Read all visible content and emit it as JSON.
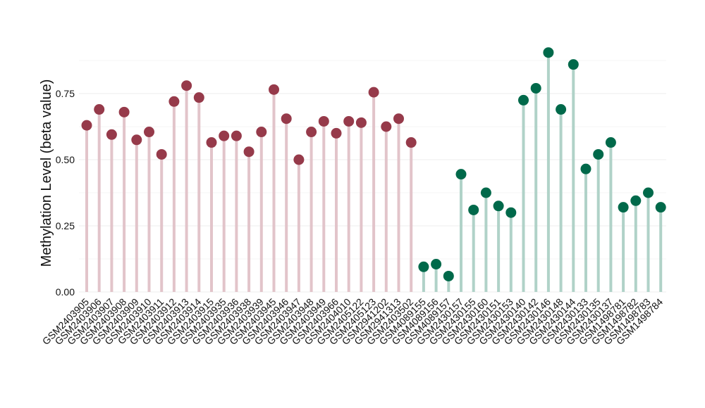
{
  "chart_data": {
    "type": "lollipop",
    "title": "",
    "xlabel": "",
    "ylabel": "Methylation Level (beta value)",
    "ylim": [
      0,
      0.95
    ],
    "yticks": [
      "0.00",
      "0.25",
      "0.50",
      "0.75"
    ],
    "ytick_values": [
      0,
      0.25,
      0.5,
      0.75
    ],
    "grid": true,
    "legend": "none",
    "colors": {
      "group1_point": "#963a4a",
      "group1_stem": "#e2c4ca",
      "group2_point": "#00694a",
      "group2_stem": "#b0d2c8",
      "grid": "#f0f0f0"
    },
    "categories": [
      "GSM2403905",
      "GSM2403906",
      "GSM2403907",
      "GSM2403908",
      "GSM2403909",
      "GSM2403910",
      "GSM2403911",
      "GSM2403912",
      "GSM2403913",
      "GSM2403914",
      "GSM2403915",
      "GSM2403935",
      "GSM2403936",
      "GSM2403938",
      "GSM2403939",
      "GSM2403945",
      "GSM2403946",
      "GSM2403947",
      "GSM2403948",
      "GSM2403949",
      "GSM2403966",
      "GSM2404010",
      "GSM2405122",
      "GSM2405123",
      "GSM2941202",
      "GSM2941313",
      "GSM2403502",
      "GSM4089155",
      "GSM4089156",
      "GSM4089157",
      "GSM2430157",
      "GSM2430155",
      "GSM2430160",
      "GSM2430151",
      "GSM2430153",
      "GSM2430140",
      "GSM2430142",
      "GSM2430146",
      "GSM2430148",
      "GSM2430144",
      "GSM2430133",
      "GSM2430135",
      "GSM2430137",
      "GSM1498781",
      "GSM1498782",
      "GSM1498783",
      "GSM1498784"
    ],
    "values": [
      0.63,
      0.69,
      0.595,
      0.68,
      0.575,
      0.605,
      0.52,
      0.72,
      0.78,
      0.735,
      0.565,
      0.59,
      0.59,
      0.53,
      0.605,
      0.765,
      0.655,
      0.5,
      0.605,
      0.645,
      0.6,
      0.645,
      0.64,
      0.755,
      0.625,
      0.655,
      0.565,
      0.095,
      0.105,
      0.06,
      0.445,
      0.31,
      0.375,
      0.325,
      0.3,
      0.725,
      0.77,
      0.905,
      0.69,
      0.86,
      0.465,
      0.52,
      0.565,
      0.32,
      0.345,
      0.375,
      0.32
    ],
    "groups": [
      1,
      1,
      1,
      1,
      1,
      1,
      1,
      1,
      1,
      1,
      1,
      1,
      1,
      1,
      1,
      1,
      1,
      1,
      1,
      1,
      1,
      1,
      1,
      1,
      1,
      1,
      1,
      2,
      2,
      2,
      2,
      2,
      2,
      2,
      2,
      2,
      2,
      2,
      2,
      2,
      2,
      2,
      2,
      2,
      2,
      2,
      2
    ]
  }
}
